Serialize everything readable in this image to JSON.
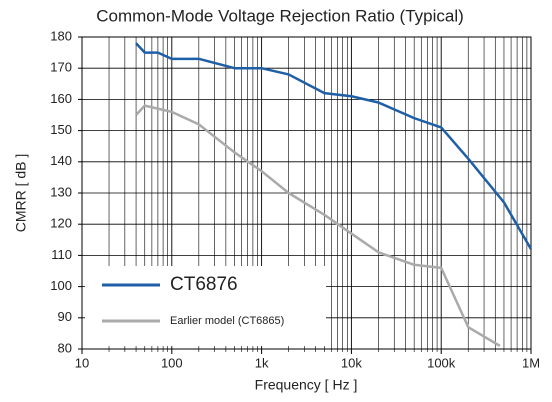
{
  "chart_data": {
    "type": "line",
    "title": "Common-Mode Voltage Rejection Ratio (Typical)",
    "x_label": "Frequency [ Hz ]",
    "y_label": "CMRR [ dB ]",
    "xscale": "log",
    "xlim": [
      10,
      1000000
    ],
    "xticks": [
      10,
      100,
      {
        "value": 1000,
        "label": "1k"
      },
      {
        "value": 10000,
        "label": "10k"
      },
      {
        "value": 100000,
        "label": "100k"
      },
      {
        "value": 1000000,
        "label": "1M"
      }
    ],
    "ylim": [
      80,
      180
    ],
    "yticks": [
      80,
      90,
      100,
      110,
      120,
      130,
      140,
      150,
      160,
      170,
      180
    ],
    "grid": true,
    "legend": "lower left",
    "series": [
      {
        "name": "CT6876",
        "color": "#1f5fa8",
        "x": [
          40,
          50,
          70,
          100,
          200,
          500,
          1000,
          2000,
          5000,
          10000,
          20000,
          50000,
          100000,
          200000,
          500000,
          1000000
        ],
        "values": [
          178,
          175,
          175,
          173,
          173,
          170,
          170,
          168,
          162,
          161,
          159,
          154,
          151,
          141,
          127,
          112
        ]
      },
      {
        "name": "Earlier model (CT6865)",
        "color": "#aaaaaa",
        "x": [
          40,
          50,
          100,
          200,
          500,
          1000,
          2000,
          5000,
          10000,
          20000,
          50000,
          100000,
          200000,
          450000
        ],
        "values": [
          155,
          158,
          156,
          152,
          143,
          137,
          130,
          123,
          117,
          111,
          107,
          106,
          87,
          81
        ]
      }
    ]
  }
}
